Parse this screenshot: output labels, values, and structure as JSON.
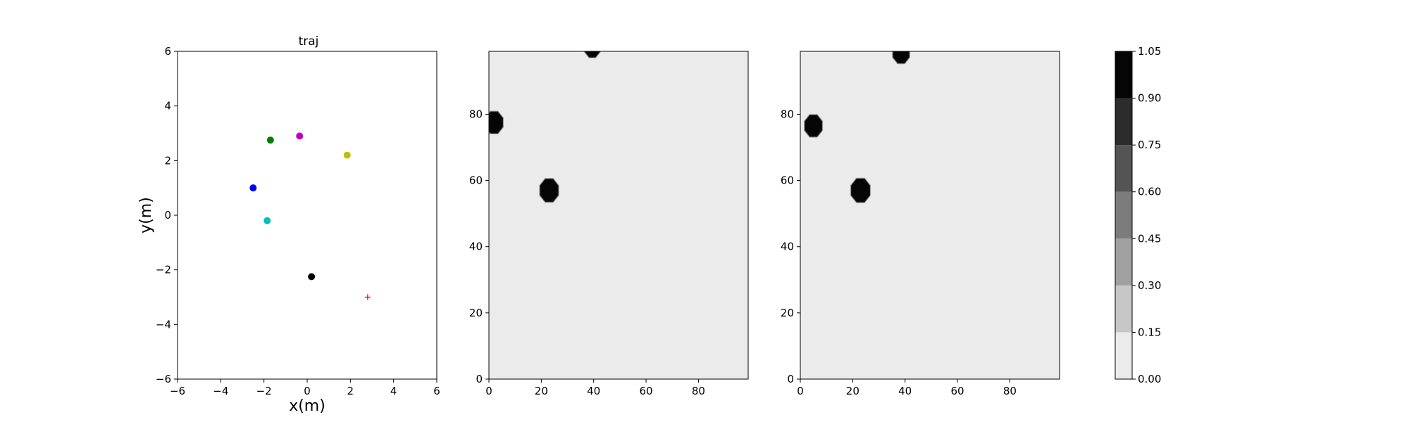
{
  "chart_data": [
    {
      "type": "scatter",
      "title": "traj",
      "xlabel": "x(m)",
      "ylabel": "y(m)",
      "xlim": [
        -6,
        6
      ],
      "ylim": [
        -6,
        6
      ],
      "xticks": [
        "−6",
        "−4",
        "−2",
        "0",
        "2",
        "4",
        "6"
      ],
      "yticks": [
        "−6",
        "−4",
        "−2",
        "0",
        "2",
        "4",
        "6"
      ],
      "grid": false,
      "points": [
        {
          "x": -2.5,
          "y": 1.0,
          "color": "#0000ff",
          "marker": "circle"
        },
        {
          "x": -1.7,
          "y": 2.75,
          "color": "#008000",
          "marker": "circle"
        },
        {
          "x": -0.35,
          "y": 2.9,
          "color": "#bf00bf",
          "marker": "circle"
        },
        {
          "x": 1.85,
          "y": 2.2,
          "color": "#bfbf00",
          "marker": "circle"
        },
        {
          "x": -1.85,
          "y": -0.2,
          "color": "#00bfbf",
          "marker": "circle"
        },
        {
          "x": 0.2,
          "y": -2.25,
          "color": "#000000",
          "marker": "circle"
        },
        {
          "x": 2.8,
          "y": -3.0,
          "color": "#ff0000",
          "marker": "plus"
        }
      ]
    },
    {
      "type": "heatmap",
      "xlim": [
        0,
        99
      ],
      "ylim": [
        0,
        99
      ],
      "xticks": [
        "0",
        "20",
        "40",
        "60",
        "80"
      ],
      "yticks": [
        "0",
        "20",
        "40",
        "60",
        "80"
      ],
      "background_level": 0.1,
      "blobs": [
        {
          "cx": 2,
          "cy": 77.5,
          "r": 3.5,
          "level": 1.0
        },
        {
          "cx": 23,
          "cy": 57,
          "r": 3.7,
          "level": 1.0
        },
        {
          "cx": 39.5,
          "cy": 100,
          "r": 3.0,
          "level": 1.0
        }
      ]
    },
    {
      "type": "heatmap",
      "xlim": [
        0,
        99
      ],
      "ylim": [
        0,
        99
      ],
      "xticks": [
        "0",
        "20",
        "40",
        "60",
        "80"
      ],
      "yticks": [
        "0",
        "20",
        "40",
        "60",
        "80"
      ],
      "background_level": 0.1,
      "blobs": [
        {
          "cx": 5,
          "cy": 76.5,
          "r": 3.5,
          "level": 1.0
        },
        {
          "cx": 23,
          "cy": 57,
          "r": 3.8,
          "level": 1.0
        },
        {
          "cx": 38.5,
          "cy": 98.5,
          "r": 3.3,
          "level": 1.0
        }
      ]
    }
  ],
  "colorbar": {
    "range": [
      0.0,
      1.05
    ],
    "bounds": [
      0.0,
      0.15,
      0.3,
      0.45,
      0.6,
      0.75,
      0.9,
      1.05
    ],
    "colors": [
      "#ebebeb",
      "#c7c7c7",
      "#a0a0a0",
      "#7c7c7c",
      "#545454",
      "#2c2c2c",
      "#050505"
    ],
    "tick_labels": [
      "0.00",
      "0.15",
      "0.30",
      "0.45",
      "0.60",
      "0.75",
      "0.90",
      "1.05"
    ]
  }
}
